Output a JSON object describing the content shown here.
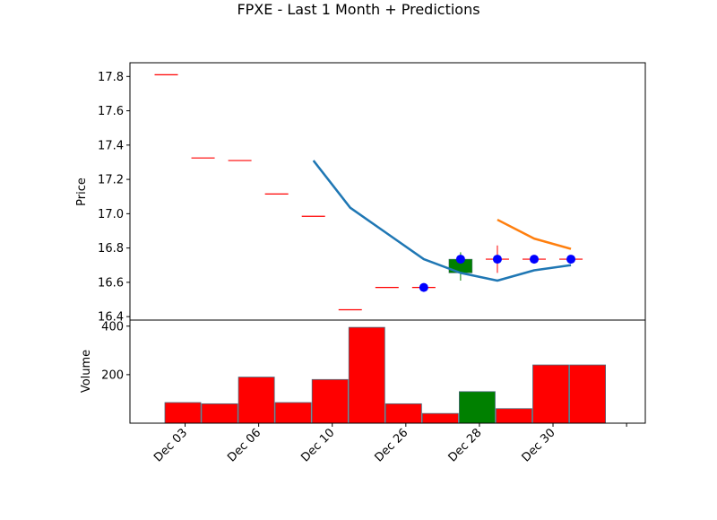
{
  "chart_data": {
    "type": "candlestick",
    "title": "FPXE - Last 1 Month + Predictions",
    "x_labels": [
      "Dec 03",
      "Dec 06",
      "Dec 10",
      "Dec 26",
      "Dec 28",
      "Dec 30"
    ],
    "x_label_slots": [
      0.5,
      2.5,
      4.5,
      6.5,
      8.5,
      10.5
    ],
    "price_panel": {
      "ylabel": "Price",
      "ylim": [
        16.38,
        17.88
      ],
      "yticks": [
        16.4,
        16.6,
        16.8,
        17.0,
        17.2,
        17.4,
        17.6,
        17.8
      ],
      "candles": [
        {
          "open": 17.81,
          "high": 17.81,
          "low": 17.81,
          "close": 17.81
        },
        {
          "open": 17.325,
          "high": 17.325,
          "low": 17.325,
          "close": 17.325
        },
        {
          "open": 17.31,
          "high": 17.31,
          "low": 17.31,
          "close": 17.31
        },
        {
          "open": 17.115,
          "high": 17.115,
          "low": 17.115,
          "close": 17.115
        },
        {
          "open": 16.985,
          "high": 16.985,
          "low": 16.985,
          "close": 16.985
        },
        {
          "open": 16.44,
          "high": 16.44,
          "low": 16.44,
          "close": 16.44
        },
        {
          "open": 16.57,
          "high": 16.57,
          "low": 16.57,
          "close": 16.57
        },
        {
          "open": 16.57,
          "high": 16.57,
          "low": 16.57,
          "close": 16.57
        },
        {
          "open": 16.655,
          "high": 16.775,
          "low": 16.61,
          "close": 16.735
        },
        {
          "open": 16.735,
          "high": 16.815,
          "low": 16.655,
          "close": 16.735
        },
        {
          "open": 16.735,
          "high": 16.735,
          "low": 16.735,
          "close": 16.735
        },
        {
          "open": 16.735,
          "high": 16.735,
          "low": 16.735,
          "close": 16.735
        }
      ],
      "markers": [
        {
          "slot": 8,
          "value": 16.57
        },
        {
          "slot": 9,
          "value": 16.735
        },
        {
          "slot": 10,
          "value": 16.735
        },
        {
          "slot": 11,
          "value": 16.735
        },
        {
          "slot": 12,
          "value": 16.735
        }
      ],
      "lines": [
        {
          "color": "#1f77b4",
          "x": [
            5,
            6,
            7,
            8,
            9,
            10,
            11,
            12
          ],
          "y": [
            17.31,
            17.035,
            16.885,
            16.735,
            16.655,
            16.61,
            16.67,
            16.7
          ]
        },
        {
          "color": "#ff7f0e",
          "x": [
            10,
            11,
            12
          ],
          "y": [
            16.965,
            16.855,
            16.795
          ]
        }
      ],
      "up_color": "#008000",
      "down_color": "#ff0000",
      "marker_color": "#0000ff"
    },
    "volume_panel": {
      "ylabel": "Volume",
      "ylim": [
        0,
        425
      ],
      "yticks": [
        200,
        400
      ],
      "values": [
        85,
        80,
        190,
        85,
        180,
        395,
        80,
        40,
        130,
        60,
        240,
        240
      ]
    }
  }
}
